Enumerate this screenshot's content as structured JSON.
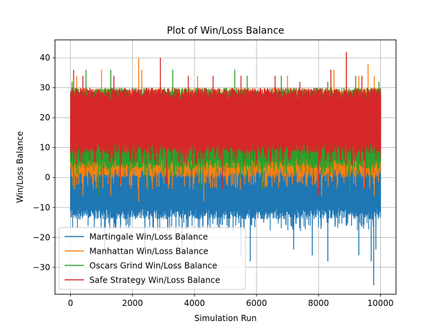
{
  "chart_data": {
    "type": "line",
    "title": "Plot of Win/Loss Balance",
    "xlabel": "Simulation Run",
    "ylabel": "Win/Loss Balance",
    "xlim": [
      -500,
      10500
    ],
    "ylim": [
      -39,
      46
    ],
    "x_ticks": [
      0,
      2000,
      4000,
      6000,
      8000,
      10000
    ],
    "y_ticks": [
      -30,
      -20,
      -10,
      0,
      10,
      20,
      30,
      40
    ],
    "grid": true,
    "legend_position": "lower-left",
    "x": {
      "start": 0,
      "end": 10000
    },
    "series": [
      {
        "name": "Martingale Win/Loss Balance",
        "color": "#1f77b4",
        "band": {
          "low": -18,
          "high": 26,
          "typical_low": -14
        },
        "outliers": [
          [
            1100,
            -26
          ],
          [
            2400,
            -24
          ],
          [
            3600,
            -24
          ],
          [
            5500,
            -26
          ],
          [
            5800,
            -28
          ],
          [
            7200,
            -24
          ],
          [
            7800,
            -26
          ],
          [
            8300,
            -28
          ],
          [
            9300,
            -26
          ],
          [
            9700,
            -28
          ],
          [
            9780,
            -36
          ],
          [
            9850,
            -24
          ]
        ]
      },
      {
        "name": "Manhattan Win/Loss Balance",
        "color": "#ff7f0e",
        "band": {
          "low": -4,
          "high": 30,
          "typical_low": 0
        },
        "outliers": [
          [
            200,
            34
          ],
          [
            1000,
            36
          ],
          [
            2200,
            40
          ],
          [
            2300,
            36
          ],
          [
            4100,
            34
          ],
          [
            7000,
            34
          ],
          [
            8500,
            36
          ],
          [
            8900,
            42
          ],
          [
            9300,
            34
          ],
          [
            9600,
            38
          ],
          [
            9800,
            34
          ],
          [
            400,
            -6
          ],
          [
            1300,
            -6
          ],
          [
            2200,
            -8
          ],
          [
            4300,
            -8
          ],
          [
            8100,
            -6
          ],
          [
            9800,
            -6
          ]
        ]
      },
      {
        "name": "Oscars Grind Win/Loss Balance",
        "color": "#2ca02c",
        "band": {
          "low": 0,
          "high": 30,
          "typical_low": 3
        },
        "outliers": [
          [
            50,
            32
          ],
          [
            500,
            36
          ],
          [
            1300,
            36
          ],
          [
            2900,
            32
          ],
          [
            3300,
            36
          ],
          [
            5300,
            36
          ],
          [
            5700,
            34
          ],
          [
            6800,
            34
          ],
          [
            8300,
            32
          ],
          [
            9200,
            34
          ],
          [
            9950,
            32
          ],
          [
            100,
            -4
          ],
          [
            900,
            -6
          ],
          [
            2500,
            -4
          ],
          [
            4200,
            -4
          ],
          [
            6200,
            -4
          ],
          [
            9000,
            -6
          ]
        ]
      },
      {
        "name": "Safe Strategy Win/Loss Balance",
        "color": "#d62728",
        "band": {
          "low": 4,
          "high": 30,
          "typical_low": 8
        },
        "outliers": [
          [
            100,
            36
          ],
          [
            400,
            34
          ],
          [
            1400,
            34
          ],
          [
            2900,
            40
          ],
          [
            3800,
            34
          ],
          [
            4600,
            34
          ],
          [
            5500,
            34
          ],
          [
            6600,
            34
          ],
          [
            7400,
            32
          ],
          [
            8400,
            36
          ],
          [
            8900,
            42
          ],
          [
            9400,
            34
          ],
          [
            1600,
            -2
          ],
          [
            3100,
            -2
          ],
          [
            4900,
            -4
          ],
          [
            8000,
            -6
          ],
          [
            9500,
            -4
          ]
        ]
      }
    ]
  }
}
